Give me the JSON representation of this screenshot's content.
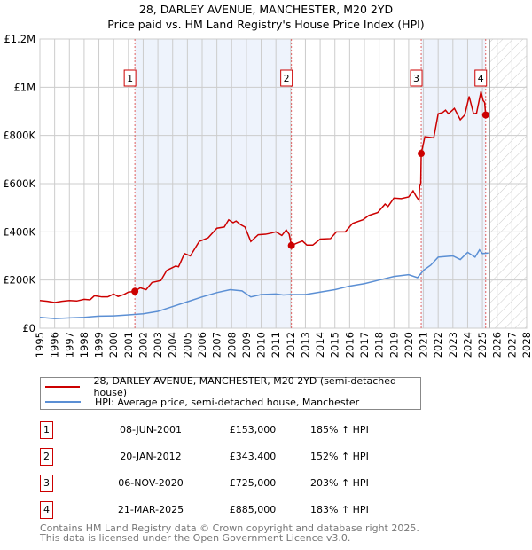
{
  "title": "28, DARLEY AVENUE, MANCHESTER, M20 2YD",
  "subtitle": "Price paid vs. HM Land Registry's House Price Index (HPI)",
  "chart_data": {
    "type": "line",
    "title": "28, DARLEY AVENUE, MANCHESTER, M20 2YD",
    "subtitle": "Price paid vs. HM Land Registry's House Price Index (HPI)",
    "xlim": [
      1995,
      2028
    ],
    "ylim": [
      0,
      1200000
    ],
    "x_ticks": [
      "1995",
      "1996",
      "1997",
      "1998",
      "1999",
      "2000",
      "2001",
      "2002",
      "2003",
      "2004",
      "2005",
      "2006",
      "2007",
      "2008",
      "2009",
      "2010",
      "2011",
      "2012",
      "2013",
      "2014",
      "2015",
      "2016",
      "2017",
      "2018",
      "2019",
      "2020",
      "2021",
      "2022",
      "2023",
      "2024",
      "2025",
      "2026",
      "2027",
      "2028"
    ],
    "y_ticks": [
      {
        "v": 0,
        "label": "£0"
      },
      {
        "v": 200000,
        "label": "£200K"
      },
      {
        "v": 400000,
        "label": "£400K"
      },
      {
        "v": 600000,
        "label": "£600K"
      },
      {
        "v": 800000,
        "label": "£800K"
      },
      {
        "v": 1000000,
        "label": "£1M"
      },
      {
        "v": 1200000,
        "label": "£1.2M"
      }
    ],
    "grid": true,
    "shaded_ranges": [
      [
        2001.44,
        2012.05
      ],
      [
        2020.85,
        2025.22
      ]
    ],
    "forecast_hatch_from": 2025.5,
    "series": [
      {
        "name": "28, DARLEY AVENUE, MANCHESTER, M20 2YD (semi-detached house)",
        "color": "#cc0000",
        "points": [
          [
            1995,
            115000
          ],
          [
            1995.5,
            112000
          ],
          [
            1996,
            107000
          ],
          [
            1996.5,
            112000
          ],
          [
            1997,
            115000
          ],
          [
            1997.5,
            113000
          ],
          [
            1998,
            120000
          ],
          [
            1998.4,
            118000
          ],
          [
            1998.7,
            135000
          ],
          [
            1999.2,
            130000
          ],
          [
            1999.6,
            130000
          ],
          [
            2000,
            142000
          ],
          [
            2000.3,
            132000
          ],
          [
            2000.7,
            140000
          ],
          [
            2001,
            150000
          ],
          [
            2001.44,
            153000
          ],
          [
            2001.8,
            168000
          ],
          [
            2002.2,
            160000
          ],
          [
            2002.6,
            190000
          ],
          [
            2003.2,
            198000
          ],
          [
            2003.6,
            240000
          ],
          [
            2004.2,
            258000
          ],
          [
            2004.4,
            255000
          ],
          [
            2004.8,
            310000
          ],
          [
            2005.2,
            300000
          ],
          [
            2005.8,
            360000
          ],
          [
            2006.4,
            375000
          ],
          [
            2007,
            415000
          ],
          [
            2007.5,
            420000
          ],
          [
            2007.8,
            450000
          ],
          [
            2008.1,
            438000
          ],
          [
            2008.3,
            445000
          ],
          [
            2008.6,
            430000
          ],
          [
            2008.9,
            420000
          ],
          [
            2009.3,
            360000
          ],
          [
            2009.8,
            388000
          ],
          [
            2010.3,
            390000
          ],
          [
            2010.7,
            395000
          ],
          [
            2011,
            400000
          ],
          [
            2011.4,
            385000
          ],
          [
            2011.7,
            408000
          ],
          [
            2011.9,
            390000
          ],
          [
            2012.05,
            343400
          ],
          [
            2012.5,
            355000
          ],
          [
            2012.8,
            362000
          ],
          [
            2013.1,
            345000
          ],
          [
            2013.5,
            345000
          ],
          [
            2014,
            370000
          ],
          [
            2014.7,
            372000
          ],
          [
            2015.1,
            400000
          ],
          [
            2015.7,
            400000
          ],
          [
            2016.2,
            435000
          ],
          [
            2016.9,
            450000
          ],
          [
            2017.3,
            468000
          ],
          [
            2017.9,
            480000
          ],
          [
            2018.4,
            515000
          ],
          [
            2018.6,
            505000
          ],
          [
            2019,
            540000
          ],
          [
            2019.5,
            538000
          ],
          [
            2020,
            545000
          ],
          [
            2020.3,
            570000
          ],
          [
            2020.5,
            548000
          ],
          [
            2020.7,
            530000
          ],
          [
            2020.75,
            595000
          ],
          [
            2020.82,
            600000
          ],
          [
            2020.85,
            725000
          ],
          [
            2021.1,
            795000
          ],
          [
            2021.7,
            790000
          ],
          [
            2022,
            890000
          ],
          [
            2022.3,
            895000
          ],
          [
            2022.5,
            905000
          ],
          [
            2022.7,
            890000
          ],
          [
            2023.1,
            912000
          ],
          [
            2023.5,
            865000
          ],
          [
            2023.8,
            885000
          ],
          [
            2024.1,
            962000
          ],
          [
            2024.4,
            890000
          ],
          [
            2024.6,
            892000
          ],
          [
            2024.9,
            982000
          ],
          [
            2025.05,
            945000
          ],
          [
            2025.15,
            937000
          ],
          [
            2025.22,
            885000
          ],
          [
            2025.4,
            895000
          ]
        ]
      },
      {
        "name": "HPI: Average price, semi-detached house, Manchester",
        "color": "#5b8fd4",
        "points": [
          [
            1995,
            45000
          ],
          [
            1996,
            40000
          ],
          [
            1997,
            43000
          ],
          [
            1998,
            45000
          ],
          [
            1999,
            50000
          ],
          [
            2000,
            51000
          ],
          [
            2001,
            55000
          ],
          [
            2002,
            60000
          ],
          [
            2003,
            70000
          ],
          [
            2004,
            90000
          ],
          [
            2005,
            110000
          ],
          [
            2006,
            130000
          ],
          [
            2007,
            148000
          ],
          [
            2007.9,
            160000
          ],
          [
            2008.7,
            155000
          ],
          [
            2009.3,
            130000
          ],
          [
            2010,
            140000
          ],
          [
            2011,
            142000
          ],
          [
            2011.5,
            138000
          ],
          [
            2012,
            140000
          ],
          [
            2013,
            140000
          ],
          [
            2014,
            150000
          ],
          [
            2015,
            160000
          ],
          [
            2016,
            175000
          ],
          [
            2017,
            185000
          ],
          [
            2018,
            200000
          ],
          [
            2019,
            215000
          ],
          [
            2020,
            222000
          ],
          [
            2020.6,
            210000
          ],
          [
            2021,
            240000
          ],
          [
            2021.5,
            262000
          ],
          [
            2022,
            295000
          ],
          [
            2023,
            300000
          ],
          [
            2023.5,
            285000
          ],
          [
            2024,
            315000
          ],
          [
            2024.5,
            295000
          ],
          [
            2024.8,
            325000
          ],
          [
            2025,
            310000
          ],
          [
            2025.4,
            312000
          ]
        ]
      }
    ],
    "annotations": [
      {
        "label": "1",
        "x": 2001.44,
        "value": 153000
      },
      {
        "label": "2",
        "x": 2012.05,
        "value": 343400
      },
      {
        "label": "3",
        "x": 2020.85,
        "value": 725000
      },
      {
        "label": "4",
        "x": 2025.22,
        "value": 885000
      }
    ]
  },
  "legend": {
    "property": "28, DARLEY AVENUE, MANCHESTER, M20 2YD (semi-detached house)",
    "hpi": "HPI: Average price, semi-detached house, Manchester"
  },
  "transactions": [
    {
      "num": "1",
      "date": "08-JUN-2001",
      "price": "£153,000",
      "hpi": "185% ↑ HPI"
    },
    {
      "num": "2",
      "date": "20-JAN-2012",
      "price": "£343,400",
      "hpi": "152% ↑ HPI"
    },
    {
      "num": "3",
      "date": "06-NOV-2020",
      "price": "£725,000",
      "hpi": "203% ↑ HPI"
    },
    {
      "num": "4",
      "date": "21-MAR-2025",
      "price": "£885,000",
      "hpi": "183% ↑ HPI"
    }
  ],
  "footer": {
    "line1": "Contains HM Land Registry data © Crown copyright and database right 2025.",
    "line2": "This data is licensed under the Open Government Licence v3.0."
  }
}
